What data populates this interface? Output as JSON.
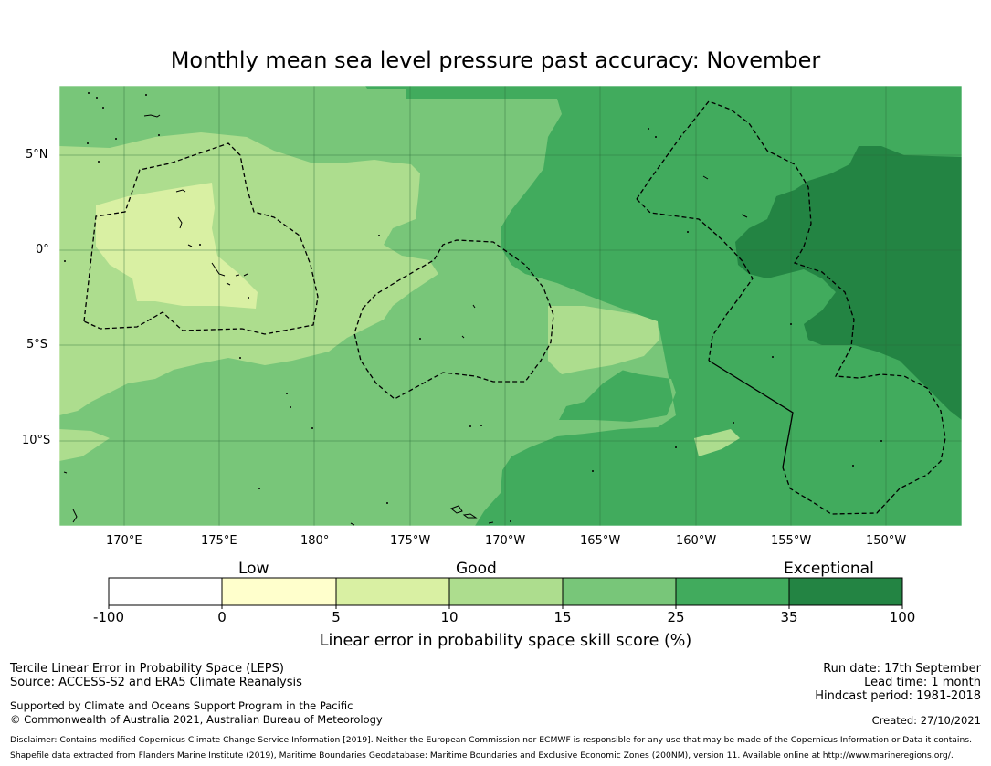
{
  "title": "Monthly mean sea level pressure past accuracy: November",
  "map": {
    "lat_labels": [
      "5°N",
      "0°",
      "5°S",
      "10°S"
    ],
    "lon_labels": [
      "170°E",
      "175°E",
      "180°",
      "175°W",
      "170°W",
      "165°W",
      "160°W",
      "155°W",
      "150°W"
    ],
    "legend_colors": [
      "#ffffff",
      "#ffffcc",
      "#d9f0a3",
      "#addd8e",
      "#78c679",
      "#41ab5d",
      "#238443"
    ]
  },
  "colorbar": {
    "category_labels": {
      "low": "Low",
      "good": "Good",
      "exceptional": "Exceptional"
    },
    "ticks": [
      "-100",
      "0",
      "5",
      "10",
      "15",
      "25",
      "35",
      "100"
    ],
    "label": "Linear error in probability space skill score (%)"
  },
  "footer": {
    "method": "Tercile Linear Error in Probability Space (LEPS)",
    "source": "Source: ACCESS-S2 and ERA5 Climate Reanalysis",
    "supported": "Supported by Climate and Oceans Support Program in the Pacific",
    "copyright": "© Commonwealth of Australia 2021, Australian Bureau of Meteorology",
    "run_date": "Run date: 17th September",
    "lead_time": "Lead time: 1 month",
    "hindcast": "Hindcast period: 1981-2018",
    "created": "Created: 27/10/2021",
    "disclaimer": "Disclaimer: Contains modified Copernicus Climate Change Service Information [2019]. Neither the European Commission nor ECMWF is responsible for any use that may be made of the Copernicus Information or Data it contains.",
    "shapefile": "Shapefile data extracted from Flanders Marine Institute (2019), Maritime Boundaries Geodatabase: Maritime Boundaries and Exclusive Economic Zones (200NM), version 11. Available online at http://www.marineregions.org/."
  }
}
